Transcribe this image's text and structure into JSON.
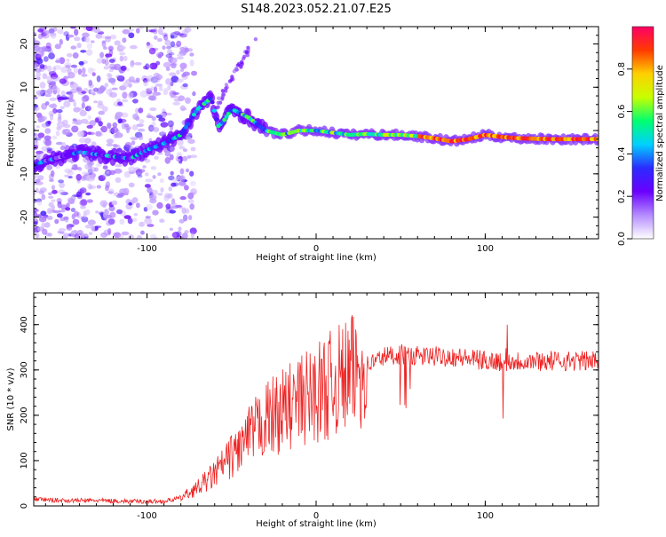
{
  "title": "S148.2023.052.21.07.E25",
  "colors": {
    "snr_line": "#ee2222",
    "colorbar": [
      "#ffffff",
      "#b58cff",
      "#6a00ff",
      "#2b2bff",
      "#00d0ff",
      "#00ff70",
      "#c8ff00",
      "#ffd000",
      "#ff3a00",
      "#ff0066"
    ]
  },
  "chart_data": [
    {
      "type": "heatmap",
      "xlabel": "Height of straight line (km)",
      "ylabel": "Frequency (Hz)",
      "xlim": [
        -167,
        167
      ],
      "ylim": [
        -25,
        24
      ],
      "x_ticks": [
        -100,
        0,
        100
      ],
      "y_ticks": [
        -20,
        -10,
        0,
        10,
        20
      ],
      "colorbar": {
        "label": "Normalized spectral amplitude",
        "range": [
          0,
          1
        ],
        "ticks": [
          "0.0",
          "0.2",
          "0.4",
          "0.6",
          "0.8"
        ]
      },
      "ridge": {
        "x": [
          -167,
          -160,
          -150,
          -140,
          -130,
          -120,
          -110,
          -100,
          -90,
          -80,
          -70,
          -62,
          -58,
          -55,
          -50,
          -40,
          -30,
          -20,
          -10,
          0,
          10,
          20,
          30,
          40,
          50,
          60,
          70,
          80,
          90,
          100,
          110,
          120,
          130,
          140,
          150,
          160,
          167
        ],
        "y": [
          -8,
          -7,
          -6,
          -5,
          -5.5,
          -6,
          -6.5,
          -4.5,
          -3,
          -1,
          5,
          7.5,
          1,
          2,
          5,
          3,
          0,
          -1,
          0,
          0,
          -0.5,
          -1,
          -0.8,
          -1,
          -1,
          -1.3,
          -1.8,
          -2.5,
          -2,
          -1,
          -1.5,
          -1.8,
          -1.9,
          -2,
          -2,
          -2,
          -2
        ]
      }
    },
    {
      "type": "line",
      "xlabel": "Height of straight line (km)",
      "ylabel": "SNR (10 * v/v)",
      "xlim": [
        -167,
        167
      ],
      "ylim": [
        0,
        470
      ],
      "x_ticks": [
        -100,
        0,
        100
      ],
      "y_ticks": [
        0,
        100,
        200,
        300,
        400
      ],
      "series": [
        {
          "x": [
            -167,
            -150,
            -130,
            -110,
            -90,
            -80,
            -70,
            -60,
            -50,
            -40,
            -30,
            -20,
            -10,
            0,
            10,
            20,
            30,
            40,
            50,
            60,
            70,
            80,
            90,
            100,
            110,
            120,
            130,
            140,
            150,
            160,
            167
          ],
          "values": [
            15,
            12,
            12,
            10,
            10,
            18,
            40,
            70,
            110,
            150,
            190,
            210,
            230,
            250,
            270,
            290,
            310,
            330,
            335,
            330,
            330,
            330,
            325,
            320,
            320,
            320,
            320,
            320,
            320,
            320,
            320
          ]
        }
      ]
    }
  ]
}
